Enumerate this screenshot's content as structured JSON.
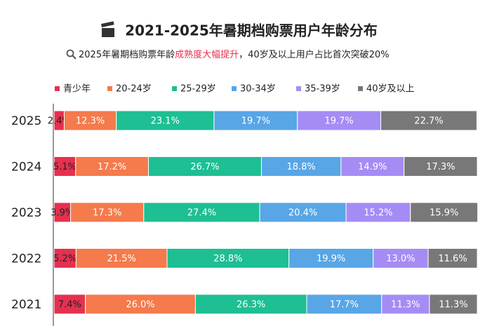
{
  "chart_data": {
    "type": "stacked-bar-horizontal",
    "title": "2021-2025年暑期档购票用户年龄分布",
    "subtitle": [
      "2025年暑期档购票年龄",
      "成熟度大幅提升",
      "，40岁及以上用户占比首次突破20%"
    ],
    "categories": [
      "2025",
      "2024",
      "2023",
      "2022",
      "2021"
    ],
    "xlim": [
      0,
      100
    ],
    "legend": "top",
    "series": [
      {
        "name": "青少年",
        "color": "#e6304f",
        "values": [
          2.4,
          5.1,
          3.9,
          5.2,
          7.4
        ],
        "value_labels": [
          "2.4%",
          "5.1%",
          "3.9%",
          "5.2%",
          "7.4%"
        ]
      },
      {
        "name": "20-24岁",
        "color": "#f57a4c",
        "values": [
          12.3,
          17.2,
          17.3,
          21.5,
          26.0
        ],
        "value_labels": [
          "12.3%",
          "17.2%",
          "17.3%",
          "21.5%",
          "26.0%"
        ]
      },
      {
        "name": "25-29岁",
        "color": "#1dbf93",
        "values": [
          23.1,
          26.7,
          27.4,
          28.8,
          26.3
        ],
        "value_labels": [
          "23.1%",
          "26.7%",
          "27.4%",
          "28.8%",
          "26.3%"
        ]
      },
      {
        "name": "30-34岁",
        "color": "#58a6e6",
        "values": [
          19.7,
          18.8,
          20.4,
          19.9,
          17.7
        ],
        "value_labels": [
          "19.7%",
          "18.8%",
          "20.4%",
          "19.9%",
          "17.7%"
        ]
      },
      {
        "name": "35-39岁",
        "color": "#a58cf5",
        "values": [
          19.7,
          14.9,
          15.2,
          13.0,
          11.3
        ],
        "value_labels": [
          "19.7%",
          "14.9%",
          "15.2%",
          "13.0%",
          "11.3%"
        ]
      },
      {
        "name": "40岁及以上",
        "color": "#787878",
        "values": [
          22.7,
          17.3,
          15.9,
          11.6,
          11.3
        ],
        "value_labels": [
          "22.7%",
          "17.3%",
          "15.9%",
          "11.6%",
          "11.3%"
        ]
      }
    ]
  }
}
